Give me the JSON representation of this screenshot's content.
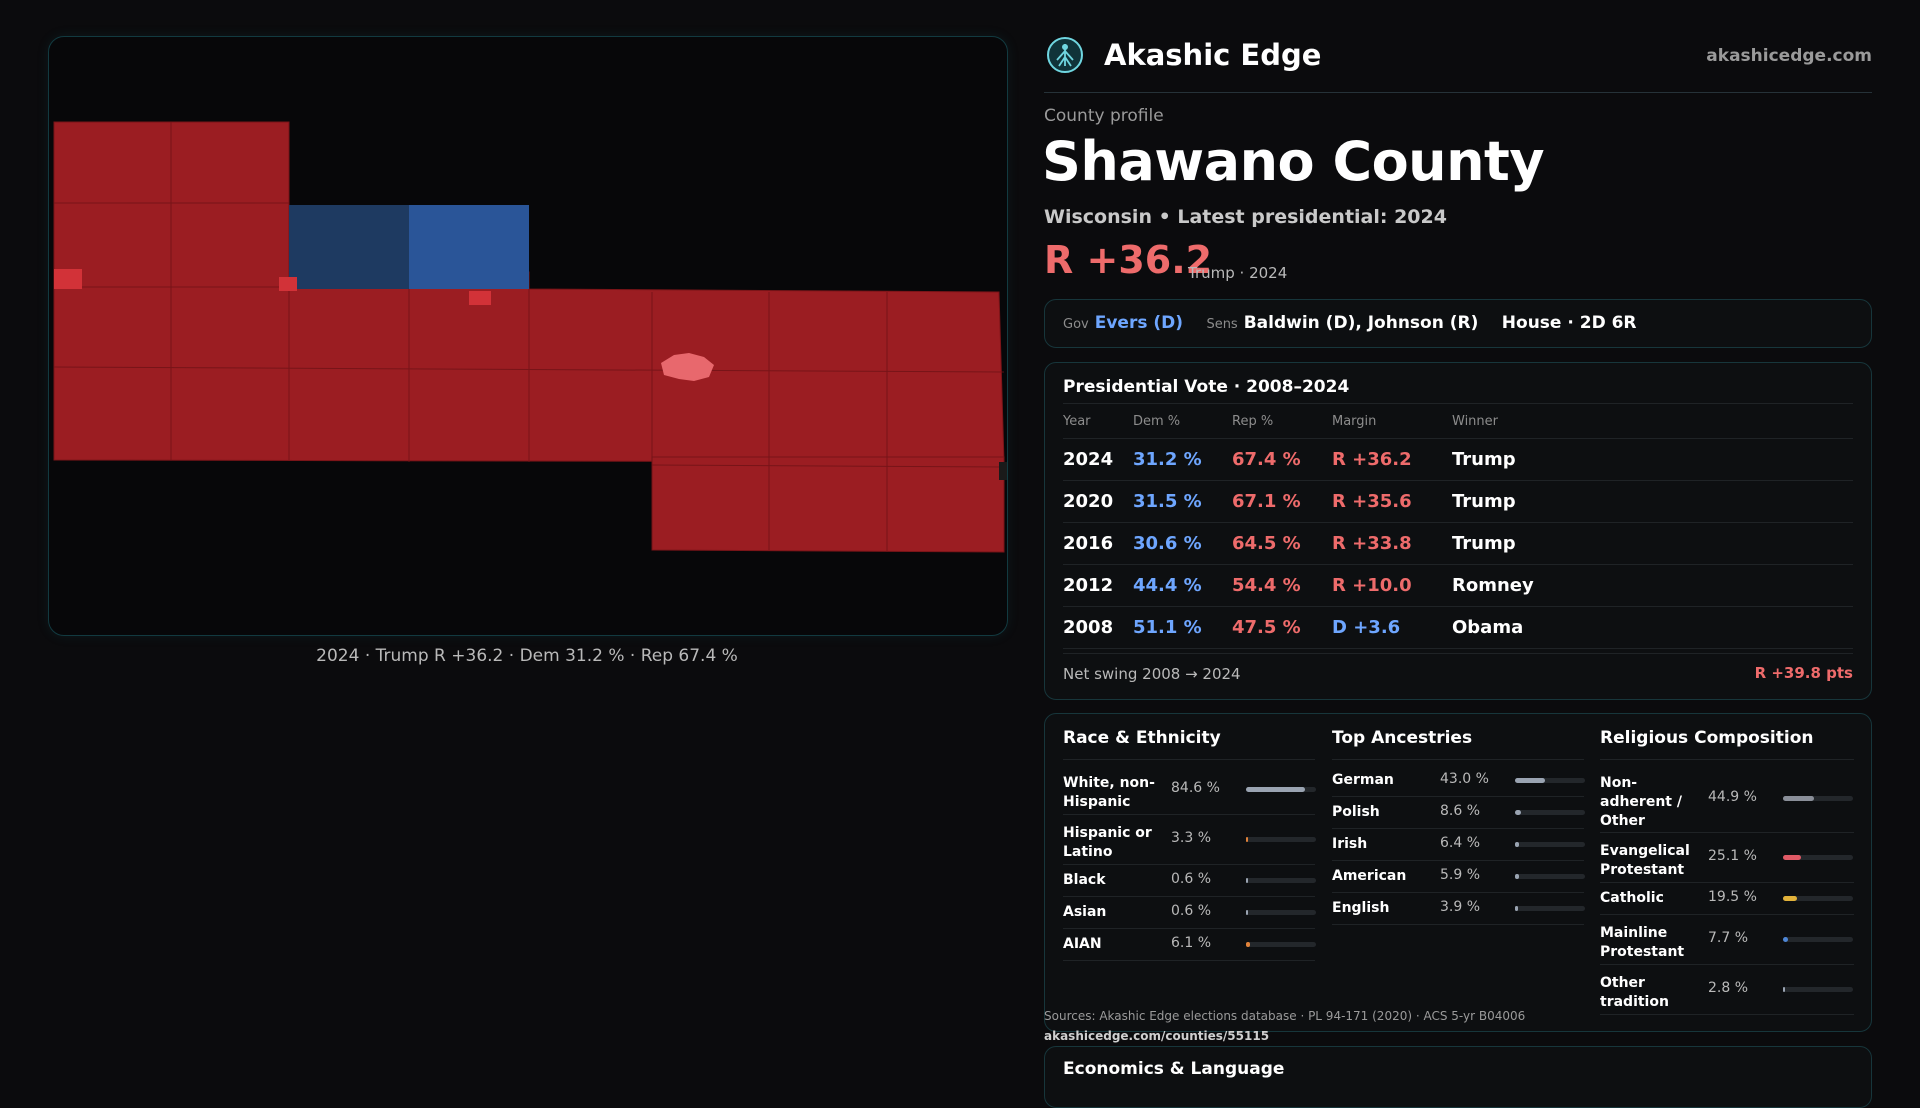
{
  "brand": {
    "name": "Akashic Edge",
    "domain": "akashicedge.com",
    "logo_icon": "tree-of-life-icon",
    "accent_color": "#6fd6e0"
  },
  "profile": {
    "eyebrow": "County profile",
    "title": "Shawano County",
    "subline": "Wisconsin • Latest presidential: 2024",
    "margin": "R +36.2",
    "margin_note": "Trump · 2024"
  },
  "officials": {
    "gov_label": "Gov",
    "gov_value": "Evers (D)",
    "sens_label": "Sens",
    "sens_value": "Baldwin (D), Johnson (R)",
    "house_value": "House · 2D 6R"
  },
  "map": {
    "caption": "2024 · Trump R +36.2 · Dem 31.2 % · Rep 67.4 %",
    "colors": {
      "rep": "#9b1d22",
      "rep_light": "#e8686d",
      "dem_dark": "#1e3a61",
      "dem": "#2a5598"
    }
  },
  "presidential": {
    "title": "Presidential Vote · 2008–2024",
    "headers": [
      "Year",
      "Dem %",
      "Rep %",
      "Margin",
      "Winner"
    ],
    "rows": [
      {
        "year": "2024",
        "dem": "31.2 %",
        "rep": "67.4 %",
        "margin": "R +36.2",
        "party": "R",
        "winner": "Trump"
      },
      {
        "year": "2020",
        "dem": "31.5 %",
        "rep": "67.1 %",
        "margin": "R +35.6",
        "party": "R",
        "winner": "Trump"
      },
      {
        "year": "2016",
        "dem": "30.6 %",
        "rep": "64.5 %",
        "margin": "R +33.8",
        "party": "R",
        "winner": "Trump"
      },
      {
        "year": "2012",
        "dem": "44.4 %",
        "rep": "54.4 %",
        "margin": "R +10.0",
        "party": "R",
        "winner": "Romney"
      },
      {
        "year": "2008",
        "dem": "51.1 %",
        "rep": "47.5 %",
        "margin": "D +3.6",
        "party": "D",
        "winner": "Obama"
      }
    ],
    "swing_label": "Net swing 2008 → 2024",
    "swing_value": "R +39.8 pts"
  },
  "race": {
    "title": "Race & Ethnicity",
    "items": [
      {
        "label": "White, non-Hispanic",
        "value": "84.6 %",
        "pct": 84.6,
        "color": "#9aa4b2"
      },
      {
        "label": "Hispanic or Latino",
        "value": "3.3 %",
        "pct": 3.3,
        "color": "#e0823a"
      },
      {
        "label": "Black",
        "value": "0.6 %",
        "pct": 0.6,
        "color": "#9aa4b2"
      },
      {
        "label": "Asian",
        "value": "0.6 %",
        "pct": 0.6,
        "color": "#9aa4b2"
      },
      {
        "label": "AIAN",
        "value": "6.1 %",
        "pct": 6.1,
        "color": "#e0823a"
      }
    ]
  },
  "ancestry": {
    "title": "Top Ancestries",
    "items": [
      {
        "label": "German",
        "value": "43.0 %",
        "pct": 43.0,
        "color": "#9aa4b2"
      },
      {
        "label": "Polish",
        "value": "8.6 %",
        "pct": 8.6,
        "color": "#9aa4b2"
      },
      {
        "label": "Irish",
        "value": "6.4 %",
        "pct": 6.4,
        "color": "#9aa4b2"
      },
      {
        "label": "American",
        "value": "5.9 %",
        "pct": 5.9,
        "color": "#9aa4b2"
      },
      {
        "label": "English",
        "value": "3.9 %",
        "pct": 3.9,
        "color": "#9aa4b2"
      }
    ]
  },
  "religion": {
    "title": "Religious Composition",
    "items": [
      {
        "label": "Non-adherent / Other",
        "value": "44.9 %",
        "pct": 44.9,
        "color": "#8a8f99"
      },
      {
        "label": "Evangelical Protestant",
        "value": "25.1 %",
        "pct": 25.1,
        "color": "#e05a66"
      },
      {
        "label": "Catholic",
        "value": "19.5 %",
        "pct": 19.5,
        "color": "#e2b23a"
      },
      {
        "label": "Mainline Protestant",
        "value": "7.7 %",
        "pct": 7.7,
        "color": "#4d86d6"
      },
      {
        "label": "Other tradition",
        "value": "2.8 %",
        "pct": 2.8,
        "color": "#9aa4b2"
      }
    ]
  },
  "sources": {
    "text": "Sources: Akashic Edge elections database · PL 94-171 (2020) · ACS 5-yr B04006",
    "url": "akashicedge.com/counties/55115"
  },
  "economics": {
    "title": "Economics & Language"
  }
}
